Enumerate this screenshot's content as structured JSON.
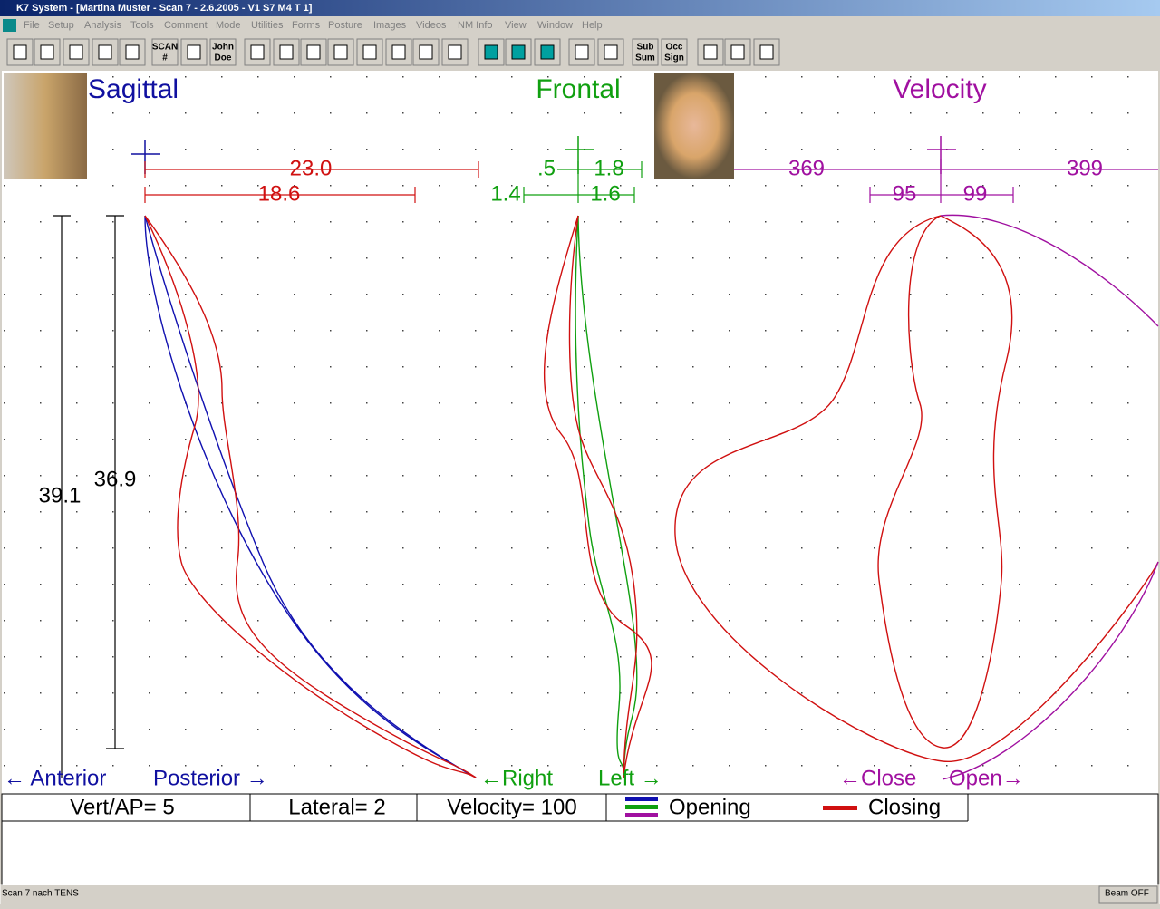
{
  "window": {
    "title": "K7 System - [Martina Muster - Scan 7 - 2.6.2005 - V1 S7   M4  T 1]"
  },
  "menu": [
    "File",
    "Setup",
    "Analysis",
    "Tools",
    "Comment",
    "Mode",
    "Utilities",
    "Forms",
    "Posture",
    "Images",
    "Videos",
    "NM Info",
    "View",
    "Window",
    "Help"
  ],
  "toolbar": {
    "scan": [
      "SCAN",
      "#"
    ],
    "patient": [
      "John",
      "Doe"
    ],
    "sub_sum": [
      "Sub",
      "Sum"
    ],
    "occ_sign": [
      "Occ",
      "Sign"
    ]
  },
  "panels": {
    "sagittal": {
      "title": "Sagittal",
      "top": "23.0",
      "second": "18.6",
      "height_outer": "39.1",
      "height_inner": "36.9",
      "left": "← Anterior",
      "right": "Posterior →"
    },
    "frontal": {
      "title": "Frontal",
      "top_left": ".5",
      "top_right": "1.8",
      "second_left": "1.4",
      "second_right": "1.6",
      "left": "←Right",
      "right": "Left →"
    },
    "velocity": {
      "title": "Velocity",
      "top_left": "369",
      "top_right": "399",
      "second_left": "95",
      "second_right": "99",
      "left": "←Close",
      "right": "Open→"
    }
  },
  "legend": {
    "vert_ap": "Vert/AP= 5",
    "lateral": "Lateral= 2",
    "velocity": "Velocity= 100",
    "opening": "Opening",
    "closing": "Closing"
  },
  "status": {
    "message": "Scan 7 nach TENS",
    "beam": "Beam OFF"
  }
}
